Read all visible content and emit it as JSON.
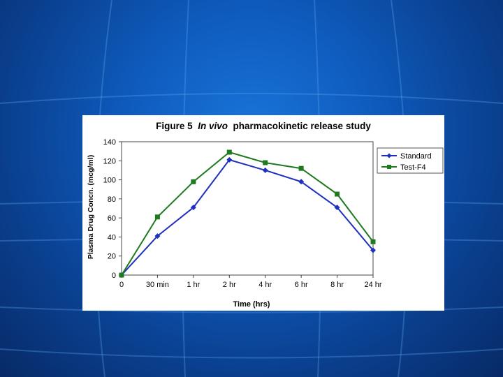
{
  "slide": {
    "background_colors": [
      "#1a74d9",
      "#0a3f8e",
      "#072a66"
    ],
    "grid_line_color": "#5aa0ee"
  },
  "chart_data": {
    "type": "line",
    "title_prefix": "Figure 5",
    "title_italic": "In vivo",
    "title_suffix": "pharmacokinetic release study",
    "xlabel": "Time (hrs)",
    "ylabel": "Plasma Drug Concn. (mcg/ml)",
    "categories": [
      "0",
      "30 min",
      "1 hr",
      "2 hr",
      "4 hr",
      "6 hr",
      "8 hr",
      "24 hr"
    ],
    "ylim": [
      0,
      140
    ],
    "yticks": [
      "0",
      "20",
      "40",
      "60",
      "80",
      "100",
      "120",
      "140"
    ],
    "grid": false,
    "legend_position": "right",
    "series": [
      {
        "name": "Standard",
        "color": "#1f2fbf",
        "marker": "diamond",
        "values": [
          0,
          41,
          71,
          121,
          110,
          98,
          71,
          26
        ]
      },
      {
        "name": "Test-F4",
        "color": "#1f7a1f",
        "marker": "square",
        "values": [
          0,
          61,
          98,
          129,
          118,
          112,
          85,
          35
        ]
      }
    ]
  }
}
